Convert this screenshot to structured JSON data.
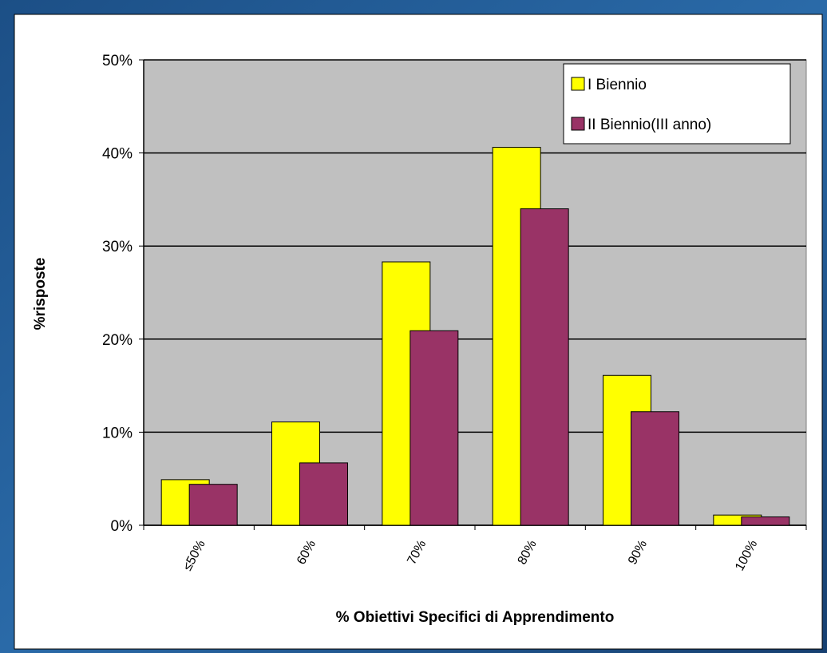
{
  "chart_data": {
    "type": "bar",
    "xlabel": "% Obiettivi Specifici di Apprendimento",
    "ylabel": "%risposte",
    "categories": [
      "≤50%",
      "60%",
      "70%",
      "80%",
      "90%",
      "100%"
    ],
    "series": [
      {
        "name": "I Biennio",
        "color": "#ffff00",
        "values": [
          4.9,
          11.1,
          28.3,
          40.6,
          16.1,
          1.1
        ]
      },
      {
        "name": "II Biennio(III anno)",
        "color": "#993366",
        "values": [
          4.4,
          6.7,
          20.9,
          34,
          12.2,
          0.9
        ]
      }
    ],
    "ylim": [
      0,
      50
    ],
    "yticks": [
      {
        "value": 0,
        "label": "0%"
      },
      {
        "value": 10,
        "label": "10%"
      },
      {
        "value": 20,
        "label": "20%"
      },
      {
        "value": 30,
        "label": "30%"
      },
      {
        "value": 40,
        "label": "40%"
      },
      {
        "value": 50,
        "label": "50%"
      }
    ],
    "grid": true,
    "legend": "upper right"
  }
}
